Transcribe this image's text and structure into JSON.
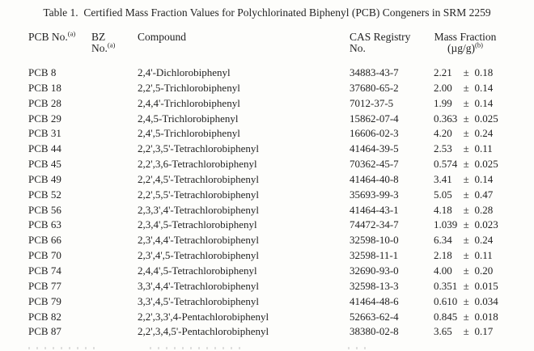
{
  "title": "Table 1.  Certified Mass Fraction Values for Polychlorinated Biphenyl (PCB) Congeners in SRM 2259",
  "table": {
    "headers": {
      "pcb": {
        "text": "PCB No.",
        "sup": "(a)"
      },
      "bz": {
        "line1": "BZ",
        "line2": "No.",
        "sup": "(a)"
      },
      "compound": {
        "text": "Compound"
      },
      "cas": {
        "line1": "CAS Registry",
        "line2": "No."
      },
      "mass": {
        "line1": "Mass Fraction",
        "line2": "(µg/g)",
        "sup": "(b)"
      }
    },
    "rows": [
      {
        "pcb": "PCB 8",
        "bz": "",
        "compound": "2,4'-Dichlorobiphenyl",
        "cas": "34883-43-7",
        "value": "2.21",
        "pm": "±",
        "unc": "0.18"
      },
      {
        "pcb": "PCB 18",
        "bz": "",
        "compound": "2,2',5-Trichlorobiphenyl",
        "cas": "37680-65-2",
        "value": "2.00",
        "pm": "±",
        "unc": "0.14"
      },
      {
        "pcb": "PCB 28",
        "bz": "",
        "compound": "2,4,4'-Trichlorobiphenyl",
        "cas": "7012-37-5",
        "value": "1.99",
        "pm": "±",
        "unc": "0.14"
      },
      {
        "pcb": "PCB 29",
        "bz": "",
        "compound": "2,4,5-Trichlorobiphenyl",
        "cas": "15862-07-4",
        "value": "0.363",
        "pm": "±",
        "unc": "0.025"
      },
      {
        "pcb": "PCB 31",
        "bz": "",
        "compound": "2,4',5-Trichlorobiphenyl",
        "cas": "16606-02-3",
        "value": "4.20",
        "pm": "±",
        "unc": "0.24"
      },
      {
        "pcb": "PCB 44",
        "bz": "",
        "compound": "2,2',3,5'-Tetrachlorobiphenyl",
        "cas": "41464-39-5",
        "value": "2.53",
        "pm": "±",
        "unc": "0.11"
      },
      {
        "pcb": "PCB 45",
        "bz": "",
        "compound": "2,2',3,6-Tetrachlorobiphenyl",
        "cas": "70362-45-7",
        "value": "0.574",
        "pm": "±",
        "unc": "0.025"
      },
      {
        "pcb": "PCB 49",
        "bz": "",
        "compound": "2,2',4,5'-Tetrachlorobiphenyl",
        "cas": "41464-40-8",
        "value": "3.41",
        "pm": "±",
        "unc": "0.14"
      },
      {
        "pcb": "PCB 52",
        "bz": "",
        "compound": "2,2',5,5'-Tetrachlorobiphenyl",
        "cas": "35693-99-3",
        "value": "5.05",
        "pm": "±",
        "unc": "0.47"
      },
      {
        "pcb": "PCB 56",
        "bz": "",
        "compound": "2,3,3',4'-Tetrachlorobiphenyl",
        "cas": "41464-43-1",
        "value": "4.18",
        "pm": "±",
        "unc": "0.28"
      },
      {
        "pcb": "PCB 63",
        "bz": "",
        "compound": "2,3,4',5-Tetrachlorobiphenyl",
        "cas": "74472-34-7",
        "value": "1.039",
        "pm": "±",
        "unc": "0.023"
      },
      {
        "pcb": "PCB 66",
        "bz": "",
        "compound": "2,3',4,4'-Tetrachlorobiphenyl",
        "cas": "32598-10-0",
        "value": "6.34",
        "pm": "±",
        "unc": "0.24"
      },
      {
        "pcb": "PCB 70",
        "bz": "",
        "compound": "2,3',4',5-Tetrachlorobiphenyl",
        "cas": "32598-11-1",
        "value": "2.18",
        "pm": "±",
        "unc": "0.11"
      },
      {
        "pcb": "PCB 74",
        "bz": "",
        "compound": "2,4,4',5-Tetrachlorobiphenyl",
        "cas": "32690-93-0",
        "value": "4.00",
        "pm": "±",
        "unc": "0.20"
      },
      {
        "pcb": "PCB 77",
        "bz": "",
        "compound": "3,3',4,4'-Tetrachlorobiphenyl",
        "cas": "32598-13-3",
        "value": "0.351",
        "pm": "±",
        "unc": "0.015"
      },
      {
        "pcb": "PCB 79",
        "bz": "",
        "compound": "3,3',4,5'-Tetrachlorobiphenyl",
        "cas": "41464-48-6",
        "value": "0.610",
        "pm": "±",
        "unc": "0.034"
      },
      {
        "pcb": "PCB 82",
        "bz": "",
        "compound": "2,2',3,3',4-Pentachlorobiphenyl",
        "cas": "52663-62-4",
        "value": "0.845",
        "pm": "±",
        "unc": "0.018"
      },
      {
        "pcb": "PCB 87",
        "bz": "",
        "compound": "2,2',3,4,5'-Pentachlorobiphenyl",
        "cas": "38380-02-8",
        "value": "3.65",
        "pm": "±",
        "unc": "0.17"
      }
    ]
  }
}
